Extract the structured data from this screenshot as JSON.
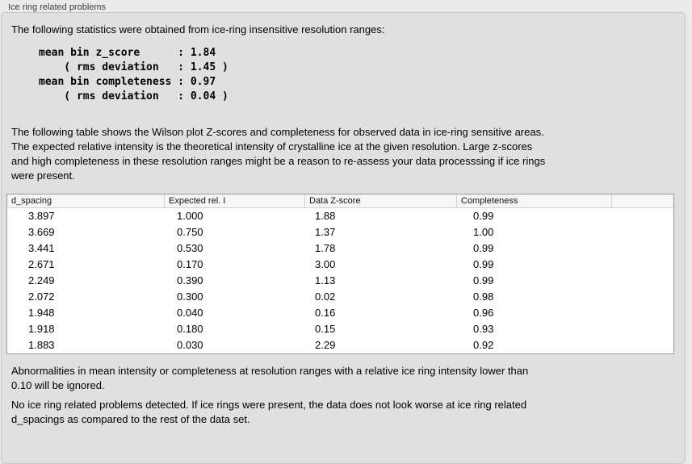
{
  "panel": {
    "label": "Ice ring related problems"
  },
  "stats": {
    "intro": "The following statistics were obtained from ice-ring insensitive resolution ranges:",
    "lines": [
      "mean bin z_score      : 1.84",
      "    ( rms deviation   : 1.45 )",
      "mean bin completeness : 0.97",
      "    ( rms deviation   : 0.04 )"
    ]
  },
  "table_description": {
    "lines": [
      "The following table shows the Wilson plot Z-scores and completeness for observed data in ice-ring sensitive areas.",
      "The expected relative intensity is the theoretical intensity of crystalline ice at the given resolution. Large z-scores",
      "and high completeness in these resolution ranges might be a reason to re-assess your data processsing if ice rings",
      "were present."
    ]
  },
  "table": {
    "columns": [
      "d_spacing",
      "Expected rel. I",
      "Data Z-score",
      "Completeness"
    ],
    "rows": [
      [
        "3.897",
        "1.000",
        "1.88",
        "0.99"
      ],
      [
        "3.669",
        "0.750",
        "1.37",
        "1.00"
      ],
      [
        "3.441",
        "0.530",
        "1.78",
        "0.99"
      ],
      [
        "2.671",
        "0.170",
        "3.00",
        "0.99"
      ],
      [
        "2.249",
        "0.390",
        "1.13",
        "0.99"
      ],
      [
        "2.072",
        "0.300",
        "0.02",
        "0.98"
      ],
      [
        "1.948",
        "0.040",
        "0.16",
        "0.96"
      ],
      [
        "1.918",
        "0.180",
        "0.15",
        "0.93"
      ],
      [
        "1.883",
        "0.030",
        "2.29",
        "0.92"
      ]
    ]
  },
  "notes": {
    "ignore": {
      "lines": [
        "Abnormalities in mean intensity or completeness at resolution ranges with a relative ice ring intensity lower than",
        "0.10 will be ignored."
      ]
    },
    "conclusion": {
      "lines": [
        "No ice ring related problems detected. If ice rings were present, the data does not look worse at ice ring related",
        "d_spacings as compared to the rest of the data set."
      ]
    }
  },
  "colors": {
    "outer_background": "#eaeaea",
    "panel_background": "#e0e0e0",
    "panel_border": "#c6c6c6",
    "table_background": "#ffffff",
    "table_border": "#9a9a9a",
    "header_background": "#f6f6f6",
    "text": "#000000",
    "group_label_text": "#3d3d3d"
  }
}
